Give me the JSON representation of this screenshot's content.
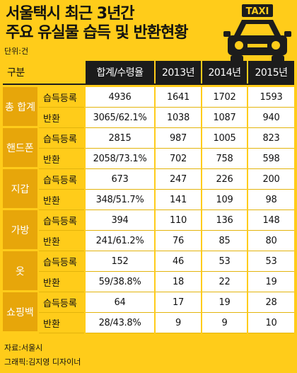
{
  "title": [
    "서울택시 최근 3년간",
    "주요 유실물 습득 및 반환현황"
  ],
  "unit": "단위:건",
  "badge": "TAXI",
  "source": "자료:서울시",
  "credit": "그래픽:김지영 디자이너",
  "chart_data": {
    "type": "table",
    "columns": [
      "구분",
      "",
      "합계/수령율",
      "2013년",
      "2014년",
      "2015년"
    ],
    "row_labels": [
      "습득등록",
      "반환"
    ],
    "categories": [
      {
        "name": "총 합계",
        "rows": [
          {
            "label": "습득등록",
            "values": [
              "4936",
              "1641",
              "1702",
              "1593"
            ]
          },
          {
            "label": "반환",
            "values": [
              "3065/62.1%",
              "1038",
              "1087",
              "940"
            ]
          }
        ]
      },
      {
        "name": "핸드폰",
        "rows": [
          {
            "label": "습득등록",
            "values": [
              "2815",
              "987",
              "1005",
              "823"
            ]
          },
          {
            "label": "반환",
            "values": [
              "2058/73.1%",
              "702",
              "758",
              "598"
            ]
          }
        ]
      },
      {
        "name": "지갑",
        "rows": [
          {
            "label": "습득등록",
            "values": [
              "673",
              "247",
              "226",
              "200"
            ]
          },
          {
            "label": "반환",
            "values": [
              "348/51.7%",
              "141",
              "109",
              "98"
            ]
          }
        ]
      },
      {
        "name": "가방",
        "rows": [
          {
            "label": "습득등록",
            "values": [
              "394",
              "110",
              "136",
              "148"
            ]
          },
          {
            "label": "반환",
            "values": [
              "241/61.2%",
              "76",
              "85",
              "80"
            ]
          }
        ]
      },
      {
        "name": "옷",
        "rows": [
          {
            "label": "습득등록",
            "values": [
              "152",
              "46",
              "53",
              "53"
            ]
          },
          {
            "label": "반환",
            "values": [
              "59/38.8%",
              "18",
              "22",
              "19"
            ]
          }
        ]
      },
      {
        "name": "쇼핑백",
        "rows": [
          {
            "label": "습득등록",
            "values": [
              "64",
              "17",
              "19",
              "28"
            ]
          },
          {
            "label": "반환",
            "values": [
              "28/43.8%",
              "9",
              "9",
              "10"
            ]
          }
        ]
      }
    ]
  },
  "colors": {
    "background": "#ffcc1a",
    "header": "#1c1c1c",
    "category": "#e7a60a",
    "cell": "#ffffff"
  }
}
